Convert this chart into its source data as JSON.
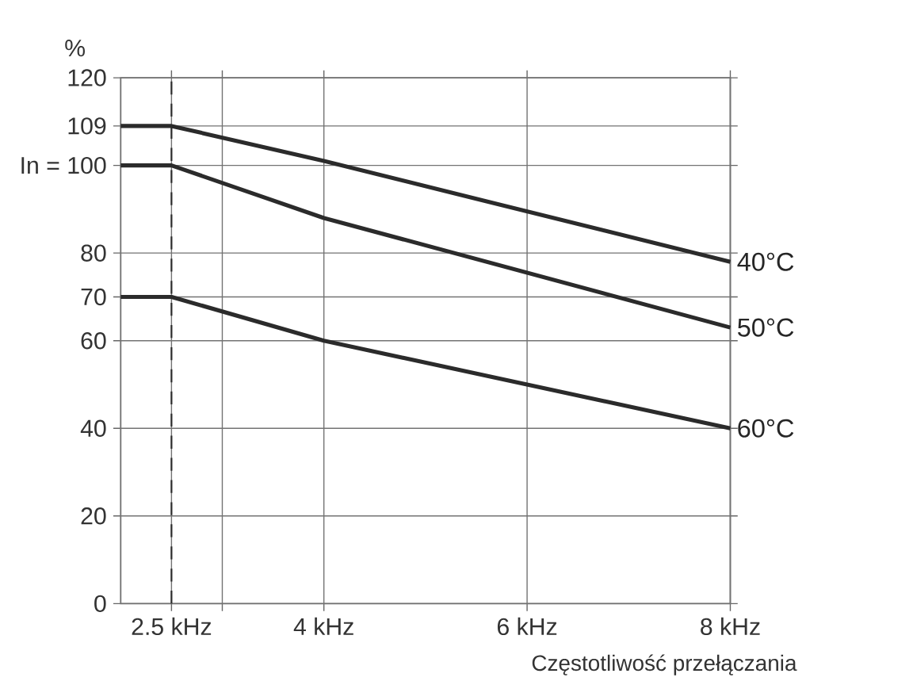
{
  "chart_data": {
    "type": "line",
    "xlabel": "Częstotliwość przełączania",
    "ylabel": "%",
    "xlim": [
      2,
      8
    ],
    "ylim": [
      0,
      120
    ],
    "xticks": [
      {
        "value": 2.5,
        "label": "2.5 kHz"
      },
      {
        "value": 3,
        "label": null
      },
      {
        "value": 4,
        "label": "4 kHz"
      },
      {
        "value": 6,
        "label": "6 kHz"
      },
      {
        "value": 8,
        "label": "8 kHz"
      }
    ],
    "yticks": [
      0,
      20,
      40,
      60,
      70,
      80,
      {
        "value": 100,
        "label": "In = 100"
      },
      109,
      120
    ],
    "grid": true,
    "legend": false,
    "marker": "none",
    "line_style": "solid",
    "ref_lines": [
      {
        "axis": "x",
        "value": 2.5,
        "label": null,
        "color": "#2b2b2b",
        "line_style": "dashed"
      }
    ],
    "series": [
      {
        "name": "40°C",
        "color": "#2b2b2b",
        "x": [
          2,
          2.5,
          4,
          8
        ],
        "values": [
          109,
          109,
          101,
          78
        ]
      },
      {
        "name": "50°C",
        "color": "#2b2b2b",
        "x": [
          2,
          2.5,
          4,
          8
        ],
        "values": [
          100,
          100,
          88,
          63
        ]
      },
      {
        "name": "60°C",
        "color": "#2b2b2b",
        "x": [
          2,
          2.5,
          4,
          8
        ],
        "values": [
          70,
          70,
          60,
          40
        ]
      }
    ]
  }
}
